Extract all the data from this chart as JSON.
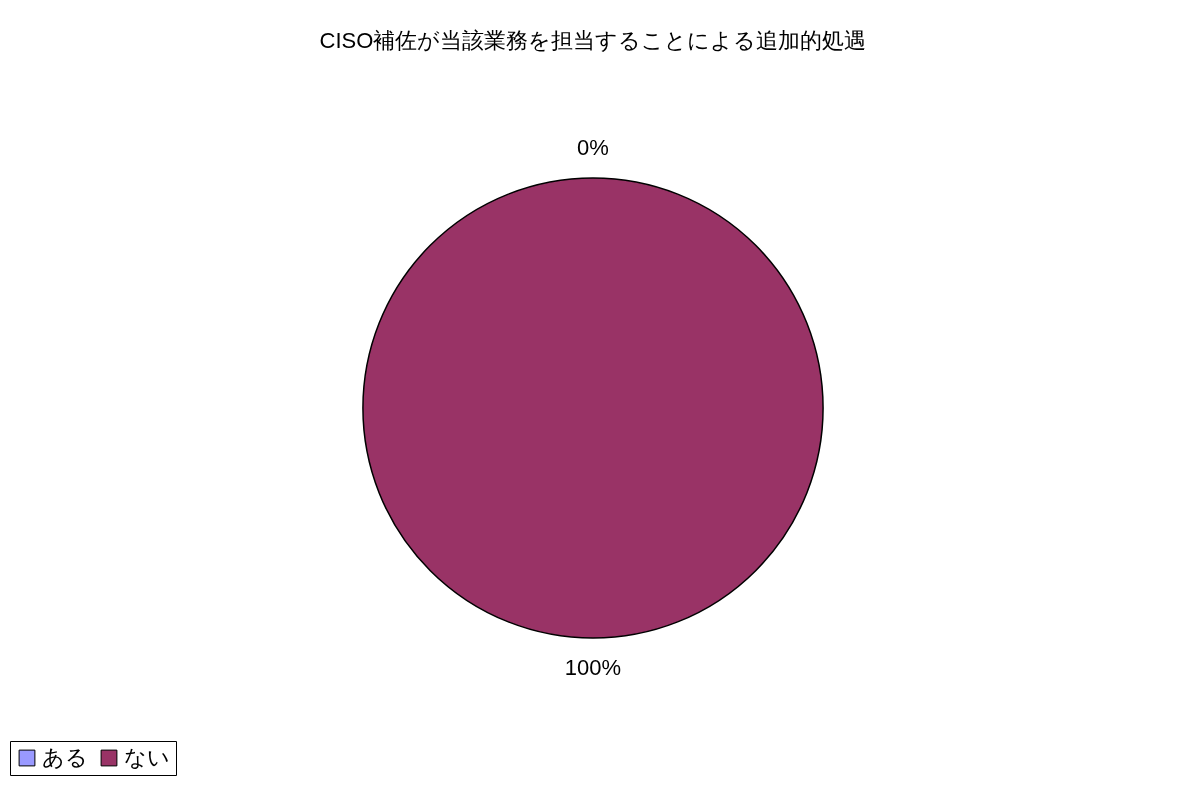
{
  "chart_data": {
    "type": "pie",
    "title": "CISO補佐が当該業務を担当することによる追加的処遇",
    "categories": [
      "ある",
      "ない"
    ],
    "values": [
      0,
      100
    ],
    "colors": [
      "#9999ff",
      "#993366"
    ],
    "value_labels": [
      "0%",
      "100%"
    ],
    "legend": "bottom"
  }
}
